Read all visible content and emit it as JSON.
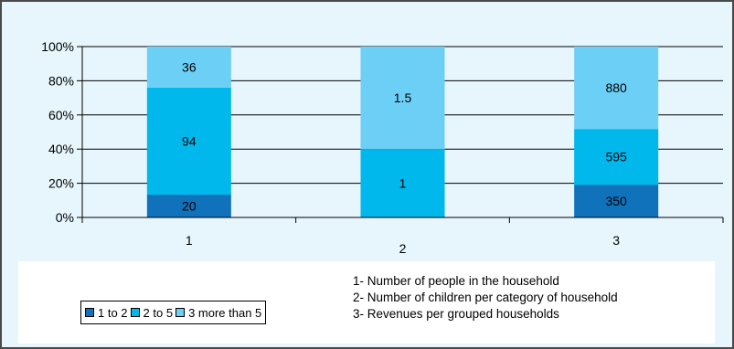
{
  "chart_data": {
    "type": "bar",
    "stacked": true,
    "normalized": true,
    "categories": [
      "1",
      "2",
      "3"
    ],
    "series": [
      {
        "name": "1 to 2",
        "color": "#0f72bb",
        "values": [
          20,
          null,
          350
        ]
      },
      {
        "name": "2 to 5",
        "color": "#00b8ec",
        "values": [
          94,
          1,
          595
        ]
      },
      {
        "name": "3 more than 5",
        "color": "#6ccff6",
        "values": [
          36,
          1.5,
          880
        ]
      }
    ],
    "y_tick_labels": [
      "0%",
      "20%",
      "40%",
      "60%",
      "80%",
      "100%"
    ],
    "y_ticks": [
      0,
      20,
      40,
      60,
      80,
      100
    ],
    "ylim": [
      0,
      100
    ],
    "grid": true,
    "legend_position": "bottom-left"
  },
  "notes": [
    "1- Number of people in the household",
    "2- Number of children per category of household",
    "3- Revenues per grouped households"
  ]
}
